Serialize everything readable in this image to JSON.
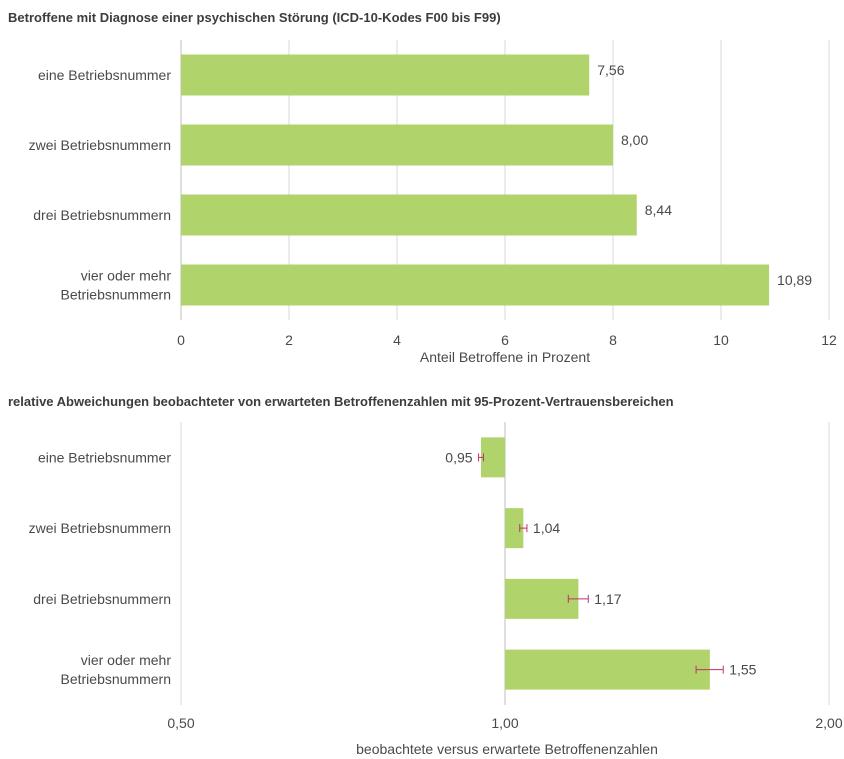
{
  "colors": {
    "bar": "#b1d36b",
    "grid": "#d9d9d9",
    "error_bar": "#c0306a",
    "text": "#4a4a4a"
  },
  "chart_data": [
    {
      "type": "bar",
      "orientation": "horizontal",
      "title": "Betroffene mit Diagnose einer psychischen Störung (ICD-10-Kodes F00 bis F99)",
      "xlabel": "Anteil Betroffene in Prozent",
      "ylabel": "",
      "categories": [
        [
          "eine Betriebsnummer"
        ],
        [
          "zwei Betriebsnummern"
        ],
        [
          "drei Betriebsnummern"
        ],
        [
          "vier oder mehr",
          "Betriebsnummern"
        ]
      ],
      "values": [
        7.56,
        8.0,
        8.44,
        10.89
      ],
      "value_labels": [
        "7,56",
        "8,00",
        "8,44",
        "10,89"
      ],
      "xlim": [
        0,
        12
      ],
      "xticks": [
        0,
        2,
        4,
        6,
        8,
        10,
        12
      ],
      "xtick_labels": [
        "0",
        "2",
        "4",
        "6",
        "8",
        "10",
        "12"
      ],
      "grid": true
    },
    {
      "type": "bar",
      "orientation": "horizontal",
      "scale": "log",
      "baseline": 1.0,
      "title": "relative Abweichungen beobachteter von erwarteten Betroffenenzahlen mit 95-Prozent-Vertrauensbereichen",
      "xlabel": "beobachtete versus erwartete Betroffenenzahlen",
      "ylabel": "",
      "categories": [
        [
          "eine Betriebsnummer"
        ],
        [
          "zwei Betriebsnummern"
        ],
        [
          "drei Betriebsnummern"
        ],
        [
          "vier oder mehr",
          "Betriebsnummern"
        ]
      ],
      "values": [
        0.95,
        1.04,
        1.17,
        1.55
      ],
      "value_labels": [
        "0,95",
        "1,04",
        "1,17",
        "1,55"
      ],
      "ci_low": [
        0.945,
        1.032,
        1.145,
        1.505
      ],
      "ci_high": [
        0.955,
        1.048,
        1.195,
        1.595
      ],
      "xlim": [
        0.5,
        2.0
      ],
      "xticks": [
        0.5,
        1.0,
        2.0
      ],
      "xtick_labels": [
        "0,50",
        "1,00",
        "2,00"
      ],
      "grid": true
    }
  ]
}
